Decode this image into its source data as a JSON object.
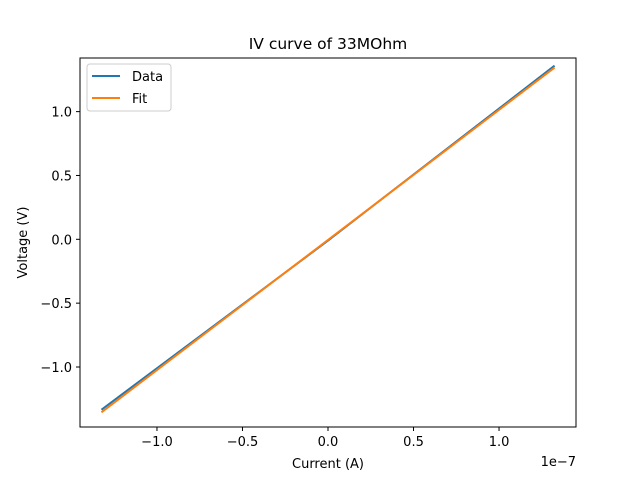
{
  "chart_data": {
    "type": "line",
    "title": "IV curve of 33MOhm",
    "xlabel": "Current (A)",
    "ylabel": "Voltage (V)",
    "x_offset_text": "1e−7",
    "xlim": [
      -1.45e-07,
      1.45e-07
    ],
    "ylim": [
      -1.47,
      1.42
    ],
    "xticks": [
      -1e-07,
      -5e-08,
      0,
      5e-08,
      1e-07
    ],
    "xtick_labels": [
      "−1.0",
      "−0.5",
      "0.0",
      "0.5",
      "1.0"
    ],
    "yticks": [
      -1.0,
      -0.5,
      0.0,
      0.5,
      1.0
    ],
    "ytick_labels": [
      "−1.0",
      "−0.5",
      "0.0",
      "0.5",
      "1.0"
    ],
    "grid": false,
    "legend_position": "upper-left",
    "series": [
      {
        "name": "Data",
        "color": "#1f77b4",
        "x": [
          -1.32e-07,
          0,
          1.32e-07
        ],
        "y": [
          -1.33,
          -0.01,
          1.355
        ]
      },
      {
        "name": "Fit",
        "color": "#ff7f0e",
        "x": [
          -1.32e-07,
          1.32e-07
        ],
        "y": [
          -1.35,
          1.34
        ]
      }
    ]
  }
}
